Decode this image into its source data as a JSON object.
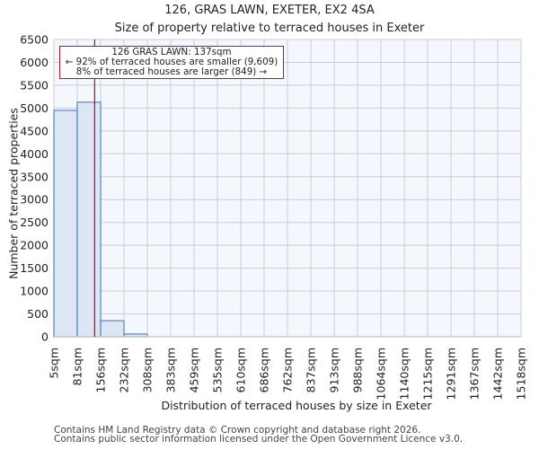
{
  "chart_data": {
    "type": "bar",
    "title": "126, GRAS LAWN, EXETER, EX2 4SA",
    "subtitle": "Size of property relative to terraced houses in Exeter",
    "xlabel": "Distribution of terraced houses by size in Exeter",
    "ylabel": "Number of terraced properties",
    "categories": [
      "5sqm",
      "81sqm",
      "156sqm",
      "232sqm",
      "308sqm",
      "383sqm",
      "459sqm",
      "535sqm",
      "610sqm",
      "686sqm",
      "762sqm",
      "837sqm",
      "913sqm",
      "988sqm",
      "1064sqm",
      "1140sqm",
      "1215sqm",
      "1291sqm",
      "1367sqm",
      "1442sqm",
      "1518sqm"
    ],
    "values": [
      4950,
      5130,
      350,
      60,
      0,
      0,
      0,
      0,
      0,
      0,
      0,
      0,
      0,
      0,
      0,
      0,
      0,
      0,
      0,
      0
    ],
    "yticks": [
      0,
      500,
      1000,
      1500,
      2000,
      2500,
      3000,
      3500,
      4000,
      4500,
      5000,
      5500,
      6000,
      6500
    ],
    "ylim": [
      0,
      6500
    ],
    "grid": true,
    "marker": {
      "value_sqm": 137,
      "color": "#b2182b"
    },
    "annotation": {
      "line1": "126 GRAS LAWN: 137sqm",
      "line2": "← 92% of terraced houses are smaller (9,609)",
      "line3": "8% of terraced houses are larger (849) →"
    },
    "colors": {
      "bar_fill": "#dce6f4",
      "bar_edge": "#5b8ccf",
      "plot_bg": "#f4f7fd",
      "grid": "#cccccc"
    }
  },
  "footer": {
    "line1": "Contains HM Land Registry data © Crown copyright and database right 2026.",
    "line2": "Contains public sector information licensed under the Open Government Licence v3.0."
  }
}
